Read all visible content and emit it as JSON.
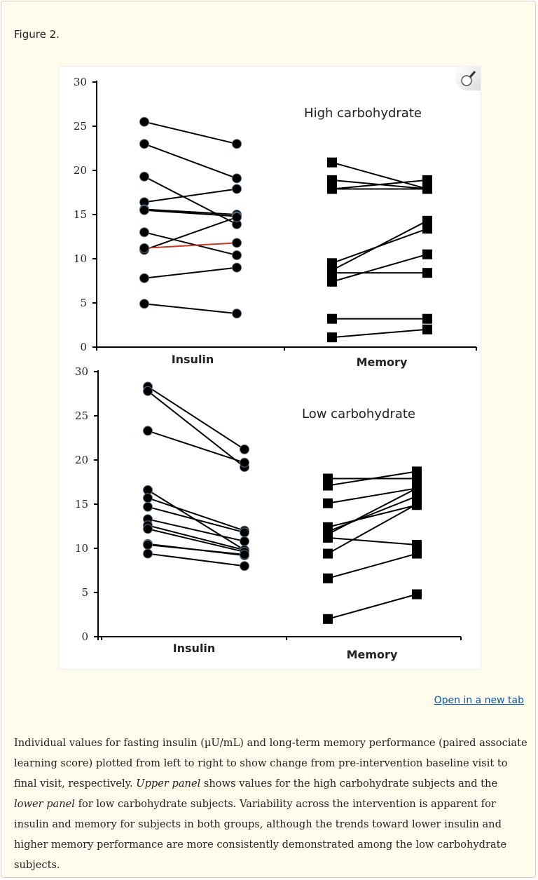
{
  "figure": {
    "title": "Figure 2.",
    "open_link": "Open in a new tab"
  },
  "caption": {
    "part1": "Individual values for fasting insulin (µU/mL) and long-term memory performance (paired associate learning score) plotted from left to right to show change from pre-intervention baseline visit to final visit, respectively. ",
    "upper_em": "Upper panel",
    "part2": " shows values for the high carbohydrate subjects and the ",
    "lower_em": "lower panel",
    "part3": " for low carbohydrate subjects. Variability across the intervention is apparent for insulin and memory for subjects in both groups, although the trends toward lower insulin and higher memory performance are more consistently demonstrated among the low carbohydrate subjects."
  },
  "colors": {
    "marker": "#000000",
    "highlight_line": "#c0392b",
    "link": "#0b58a8",
    "background": "#fffcee"
  },
  "icons": {
    "zoom": "magnifier-icon"
  },
  "chart_data": [
    {
      "type": "line",
      "title": "High carbohydrate",
      "categories": [
        "Insulin",
        "Memory"
      ],
      "ylim": [
        0,
        30
      ],
      "yticks": [
        "0",
        "5",
        "10",
        "15",
        "20",
        "25",
        "30"
      ],
      "grid": false,
      "insulin_pairs": [
        [
          25.5,
          23.0
        ],
        [
          23.0,
          19.1
        ],
        [
          19.3,
          13.9
        ],
        [
          16.4,
          17.9
        ],
        [
          15.6,
          15.0
        ],
        [
          15.5,
          14.8
        ],
        [
          11.0,
          14.7
        ],
        [
          13.0,
          10.4
        ],
        [
          11.2,
          11.8
        ],
        [
          7.8,
          9.0
        ],
        [
          4.9,
          3.8
        ]
      ],
      "memory_pairs": [
        [
          20.9,
          17.9
        ],
        [
          18.9,
          17.9
        ],
        [
          17.9,
          18.9
        ],
        [
          17.9,
          17.9
        ],
        [
          9.5,
          13.4
        ],
        [
          8.7,
          14.3
        ],
        [
          8.4,
          8.4
        ],
        [
          7.4,
          10.5
        ],
        [
          3.2,
          3.2
        ],
        [
          1.1,
          2.0
        ]
      ]
    },
    {
      "type": "line",
      "title": "Low carbohydrate",
      "categories": [
        "Insulin",
        "Memory"
      ],
      "ylim": [
        0,
        30
      ],
      "yticks": [
        "0",
        "5",
        "10",
        "15",
        "20",
        "25",
        "30"
      ],
      "grid": false,
      "insulin_pairs": [
        [
          28.3,
          21.2
        ],
        [
          27.8,
          19.2
        ],
        [
          23.3,
          19.7
        ],
        [
          16.6,
          9.8
        ],
        [
          15.7,
          12.0
        ],
        [
          14.7,
          11.8
        ],
        [
          13.3,
          10.8
        ],
        [
          12.6,
          9.8
        ],
        [
          12.2,
          9.6
        ],
        [
          10.5,
          9.2
        ],
        [
          10.4,
          9.3
        ],
        [
          9.4,
          8.0
        ]
      ],
      "memory_pairs": [
        [
          17.9,
          17.9
        ],
        [
          17.1,
          18.7
        ],
        [
          15.1,
          16.8
        ],
        [
          12.4,
          14.9
        ],
        [
          11.9,
          15.9
        ],
        [
          11.6,
          16.8
        ],
        [
          11.2,
          10.4
        ],
        [
          9.4,
          15.0
        ],
        [
          6.6,
          9.4
        ],
        [
          2.0,
          4.8
        ]
      ]
    }
  ]
}
